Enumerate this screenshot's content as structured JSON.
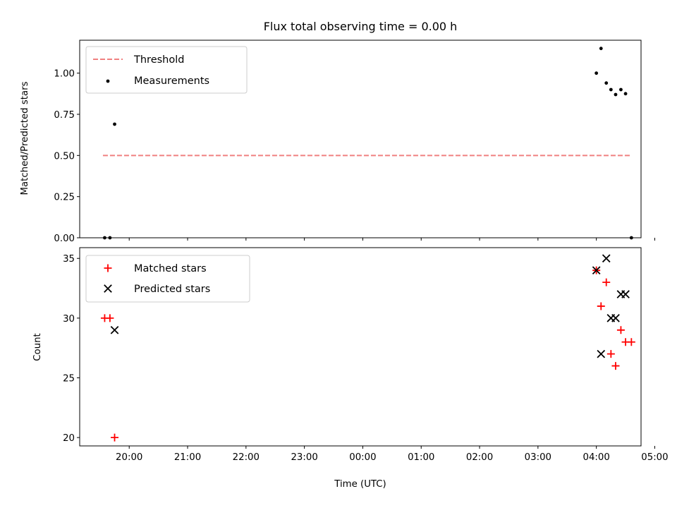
{
  "chart_data": [
    {
      "type": "scatter",
      "title": "Flux total observing time = 0.00 h",
      "xlabel": "",
      "ylabel": "Matched/Predicted stars",
      "xlim": [
        -0.848,
        8.765
      ],
      "ylim": [
        0.0,
        1.2
      ],
      "yticks": [
        0.0,
        0.25,
        0.5,
        0.75,
        1.0
      ],
      "ytick_labels": [
        "0.00",
        "0.25",
        "0.50",
        "0.75",
        "1.00"
      ],
      "legend_position": "upper-left",
      "threshold": {
        "name": "Threshold",
        "x": [
          -0.45,
          8.6
        ],
        "y": [
          0.5,
          0.5
        ],
        "color": "#f08080",
        "style": "dashed"
      },
      "series": [
        {
          "name": "Measurements",
          "color": "#000000",
          "marker": "dot",
          "x": [
            -0.42,
            -0.33,
            -0.25,
            8.0,
            8.08,
            8.17,
            8.25,
            8.33,
            8.42,
            8.5,
            8.6
          ],
          "y": [
            0.0,
            0.0,
            0.69,
            1.0,
            1.15,
            0.94,
            0.9,
            0.87,
            0.9,
            0.875,
            0.0
          ]
        }
      ]
    },
    {
      "type": "scatter",
      "title": "",
      "xlabel": "Time (UTC)",
      "ylabel": "Count",
      "xlim": [
        -0.848,
        8.765
      ],
      "ylim": [
        19.3,
        35.9
      ],
      "yticks": [
        20,
        25,
        30,
        35
      ],
      "ytick_labels": [
        "20",
        "25",
        "30",
        "35"
      ],
      "xticks": [
        0,
        1,
        2,
        3,
        4,
        5,
        6,
        7,
        8,
        9
      ],
      "xtick_labels": [
        "20:00",
        "21:00",
        "22:00",
        "23:00",
        "00:00",
        "01:00",
        "02:00",
        "03:00",
        "04:00",
        "05:00"
      ],
      "legend_position": "upper-left",
      "series": [
        {
          "name": "Matched stars",
          "color": "#ff0000",
          "marker": "plus",
          "x": [
            -0.42,
            -0.33,
            -0.25,
            8.0,
            8.08,
            8.17,
            8.25,
            8.33,
            8.42,
            8.5,
            8.6
          ],
          "y": [
            30,
            30,
            20,
            34,
            31,
            33,
            27,
            26,
            29,
            28,
            28
          ]
        },
        {
          "name": "Predicted stars",
          "color": "#000000",
          "marker": "x",
          "x": [
            -0.25,
            8.0,
            8.08,
            8.17,
            8.25,
            8.33,
            8.42,
            8.5
          ],
          "y": [
            29,
            34,
            27,
            35,
            30,
            30,
            32,
            32
          ]
        }
      ]
    }
  ]
}
